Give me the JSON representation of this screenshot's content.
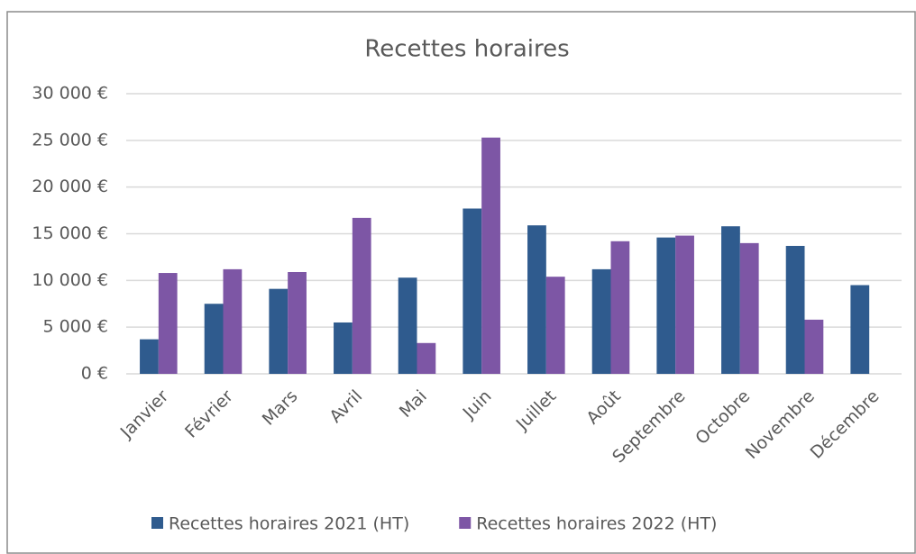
{
  "chart_data": {
    "type": "bar",
    "title": "Recettes horaires",
    "categories": [
      "Janvier",
      "Février",
      "Mars",
      "Avril",
      "Mai",
      "Juin",
      "Juillet",
      "Août",
      "Septembre",
      "Octobre",
      "Novembre",
      "Décembre"
    ],
    "series": [
      {
        "name": "Recettes horaires 2021 (HT)",
        "color": "#2f5b8e",
        "values": [
          3700,
          7500,
          9100,
          5500,
          10300,
          17700,
          15900,
          11200,
          14600,
          15800,
          13700,
          9500
        ]
      },
      {
        "name": "Recettes horaires 2022 (HT)",
        "color": "#7d56a5",
        "values": [
          10800,
          11200,
          10900,
          16700,
          3300,
          25300,
          10400,
          14200,
          14800,
          14000,
          5800,
          null
        ]
      }
    ],
    "ylim": [
      0,
      30000
    ],
    "yticks": [
      {
        "value": 0,
        "label": "0 €"
      },
      {
        "value": 5000,
        "label": "5 000 €"
      },
      {
        "value": 10000,
        "label": "10 000 €"
      },
      {
        "value": 15000,
        "label": "15 000 €"
      },
      {
        "value": 20000,
        "label": "20 000 €"
      },
      {
        "value": 25000,
        "label": "25 000 €"
      },
      {
        "value": 30000,
        "label": "30 000 €"
      }
    ],
    "grid": true,
    "legend": "bottom"
  }
}
